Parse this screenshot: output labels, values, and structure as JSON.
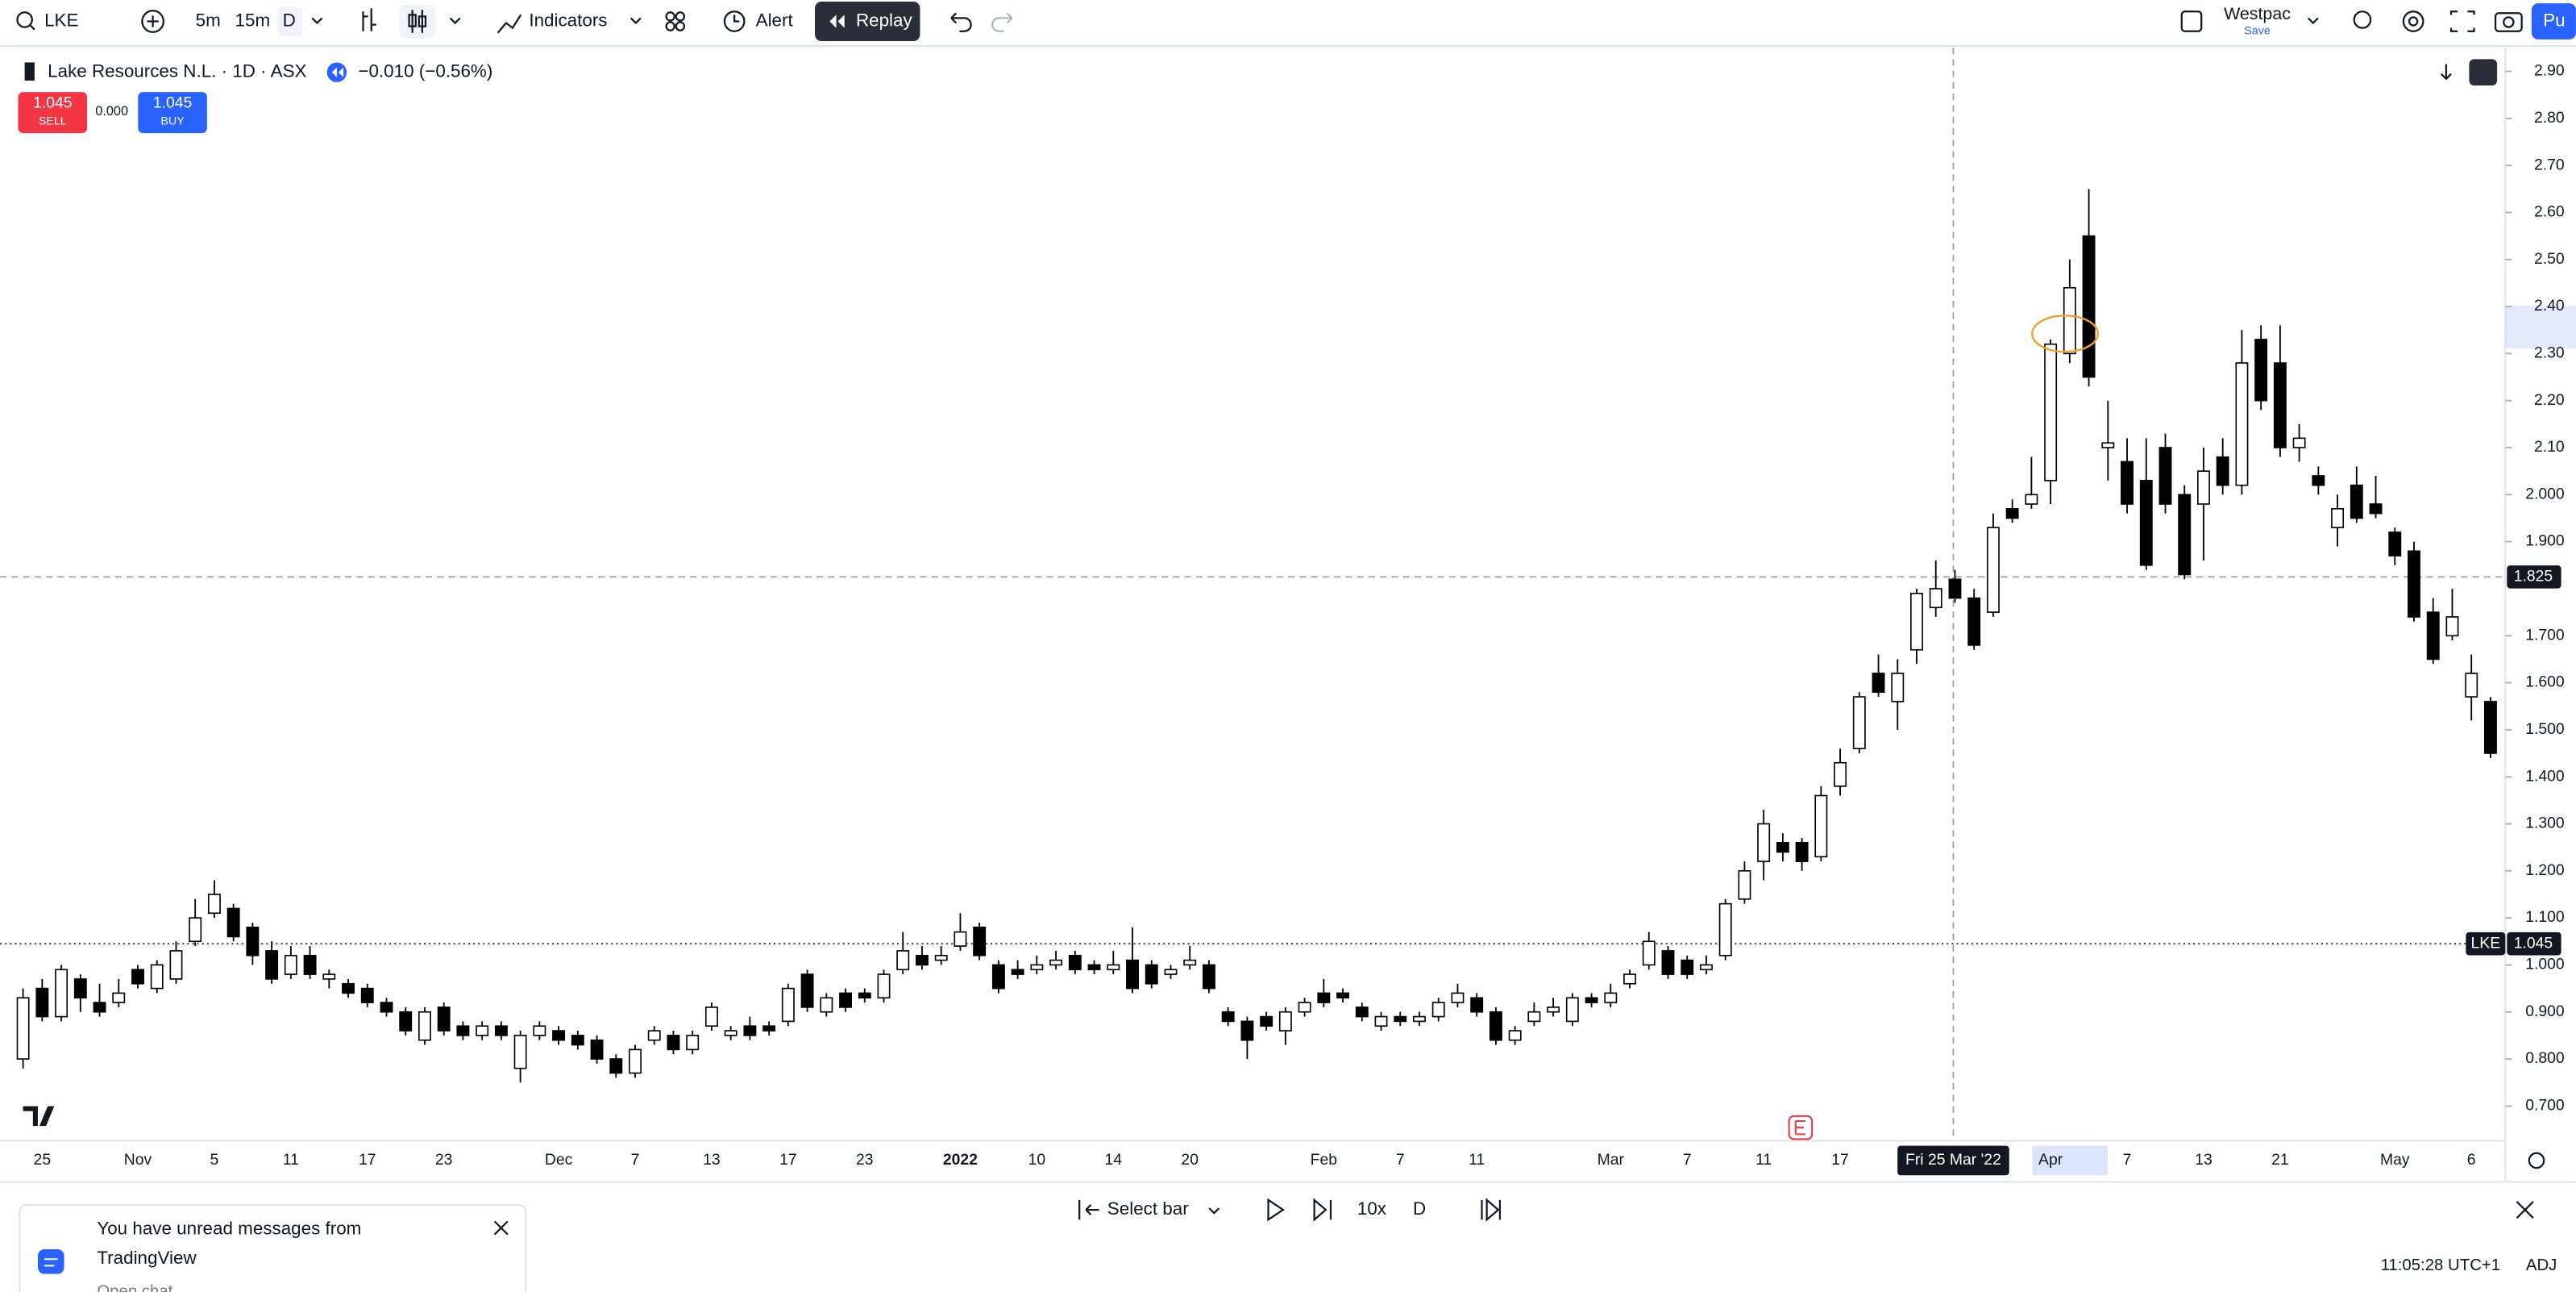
{
  "toolbar": {
    "symbol": "LKE",
    "intervals": [
      "5m",
      "15m",
      "D"
    ],
    "indicators": "Indicators",
    "alert": "Alert",
    "replay": "Replay",
    "account": "Westpac",
    "account_sub": "Save",
    "publish": "Pu"
  },
  "legend": {
    "title": "Lake Resources N.L. · 1D · ASX",
    "change": "−0.010 (−0.56%)",
    "sell_price": "1.045",
    "sell": "SELL",
    "spread": "0.000",
    "buy_price": "1.045",
    "buy": "BUY"
  },
  "chart_data": {
    "type": "candlestick",
    "categories": [
      null,
      "25",
      null,
      null,
      null,
      null,
      "Nov",
      null,
      null,
      null,
      "5",
      null,
      null,
      null,
      "11",
      null,
      null,
      null,
      "17",
      null,
      null,
      null,
      "23",
      null,
      null,
      null,
      null,
      null,
      "Dec",
      null,
      null,
      null,
      "7",
      null,
      null,
      null,
      "13",
      null,
      null,
      null,
      "17",
      null,
      null,
      null,
      "23",
      null,
      null,
      null,
      null,
      "2022",
      null,
      null,
      null,
      "10",
      null,
      null,
      null,
      "14",
      null,
      null,
      null,
      "20",
      null,
      null,
      null,
      null,
      null,
      null,
      "Feb",
      null,
      null,
      null,
      "7",
      null,
      null,
      null,
      "11",
      null,
      null,
      null,
      null,
      null,
      null,
      "Mar",
      null,
      null,
      null,
      "7",
      null,
      null,
      null,
      "11",
      null,
      null,
      null,
      "17",
      null,
      null,
      null,
      null,
      null,
      null,
      null,
      null,
      null,
      null,
      "Apr",
      null,
      null,
      null,
      "7",
      null,
      null,
      null,
      "13",
      null,
      null,
      null,
      "21",
      null,
      null,
      null,
      null,
      null,
      "May",
      null,
      null,
      null,
      "6",
      null
    ],
    "ohlc": [
      [
        0.8,
        0.95,
        0.78,
        0.93
      ],
      [
        0.95,
        0.97,
        0.88,
        0.89
      ],
      [
        0.89,
        1.0,
        0.88,
        0.99
      ],
      [
        0.97,
        0.98,
        0.9,
        0.93
      ],
      [
        0.92,
        0.96,
        0.89,
        0.9
      ],
      [
        0.92,
        0.97,
        0.91,
        0.94
      ],
      [
        0.99,
        1.0,
        0.95,
        0.96
      ],
      [
        0.95,
        1.01,
        0.94,
        1.0
      ],
      [
        0.97,
        1.05,
        0.96,
        1.03
      ],
      [
        1.05,
        1.14,
        1.04,
        1.1
      ],
      [
        1.11,
        1.18,
        1.1,
        1.15
      ],
      [
        1.12,
        1.13,
        1.05,
        1.06
      ],
      [
        1.08,
        1.09,
        1.0,
        1.02
      ],
      [
        1.03,
        1.05,
        0.96,
        0.97
      ],
      [
        0.98,
        1.04,
        0.97,
        1.02
      ],
      [
        1.02,
        1.04,
        0.97,
        0.98
      ],
      [
        0.97,
        0.99,
        0.95,
        0.98
      ],
      [
        0.96,
        0.97,
        0.93,
        0.94
      ],
      [
        0.95,
        0.96,
        0.91,
        0.92
      ],
      [
        0.92,
        0.93,
        0.89,
        0.9
      ],
      [
        0.9,
        0.91,
        0.85,
        0.86
      ],
      [
        0.84,
        0.91,
        0.83,
        0.9
      ],
      [
        0.91,
        0.92,
        0.85,
        0.86
      ],
      [
        0.87,
        0.88,
        0.84,
        0.85
      ],
      [
        0.85,
        0.88,
        0.84,
        0.87
      ],
      [
        0.87,
        0.88,
        0.84,
        0.85
      ],
      [
        0.78,
        0.86,
        0.75,
        0.85
      ],
      [
        0.85,
        0.88,
        0.84,
        0.87
      ],
      [
        0.86,
        0.87,
        0.83,
        0.84
      ],
      [
        0.85,
        0.86,
        0.82,
        0.83
      ],
      [
        0.84,
        0.85,
        0.79,
        0.8
      ],
      [
        0.8,
        0.81,
        0.76,
        0.77
      ],
      [
        0.77,
        0.83,
        0.76,
        0.82
      ],
      [
        0.84,
        0.87,
        0.83,
        0.86
      ],
      [
        0.85,
        0.86,
        0.81,
        0.82
      ],
      [
        0.82,
        0.86,
        0.81,
        0.85
      ],
      [
        0.87,
        0.92,
        0.86,
        0.91
      ],
      [
        0.85,
        0.87,
        0.84,
        0.86
      ],
      [
        0.87,
        0.89,
        0.84,
        0.85
      ],
      [
        0.87,
        0.88,
        0.85,
        0.86
      ],
      [
        0.88,
        0.96,
        0.87,
        0.95
      ],
      [
        0.98,
        0.99,
        0.9,
        0.91
      ],
      [
        0.9,
        0.94,
        0.89,
        0.93
      ],
      [
        0.94,
        0.95,
        0.9,
        0.91
      ],
      [
        0.94,
        0.95,
        0.92,
        0.93
      ],
      [
        0.93,
        0.99,
        0.92,
        0.98
      ],
      [
        0.99,
        1.07,
        0.98,
        1.03
      ],
      [
        1.02,
        1.04,
        0.99,
        1.0
      ],
      [
        1.01,
        1.04,
        1.0,
        1.02
      ],
      [
        1.04,
        1.11,
        1.03,
        1.07
      ],
      [
        1.08,
        1.09,
        1.01,
        1.02
      ],
      [
        1.0,
        1.01,
        0.94,
        0.95
      ],
      [
        0.99,
        1.01,
        0.97,
        0.98
      ],
      [
        0.99,
        1.02,
        0.98,
        1.0
      ],
      [
        1.0,
        1.03,
        0.99,
        1.01
      ],
      [
        1.02,
        1.03,
        0.98,
        0.99
      ],
      [
        1.0,
        1.01,
        0.98,
        0.99
      ],
      [
        0.99,
        1.03,
        0.98,
        1.0
      ],
      [
        1.01,
        1.08,
        0.94,
        0.95
      ],
      [
        1.0,
        1.01,
        0.95,
        0.96
      ],
      [
        0.98,
        1.0,
        0.97,
        0.99
      ],
      [
        1.0,
        1.04,
        0.99,
        1.01
      ],
      [
        1.0,
        1.01,
        0.94,
        0.95
      ],
      [
        0.9,
        0.91,
        0.87,
        0.88
      ],
      [
        0.88,
        0.89,
        0.8,
        0.84
      ],
      [
        0.89,
        0.9,
        0.86,
        0.87
      ],
      [
        0.86,
        0.91,
        0.83,
        0.9
      ],
      [
        0.9,
        0.93,
        0.89,
        0.92
      ],
      [
        0.94,
        0.97,
        0.91,
        0.92
      ],
      [
        0.94,
        0.95,
        0.92,
        0.93
      ],
      [
        0.91,
        0.92,
        0.88,
        0.89
      ],
      [
        0.87,
        0.9,
        0.86,
        0.89
      ],
      [
        0.89,
        0.9,
        0.87,
        0.88
      ],
      [
        0.88,
        0.9,
        0.87,
        0.89
      ],
      [
        0.89,
        0.93,
        0.88,
        0.92
      ],
      [
        0.92,
        0.96,
        0.91,
        0.94
      ],
      [
        0.93,
        0.94,
        0.89,
        0.9
      ],
      [
        0.9,
        0.91,
        0.83,
        0.84
      ],
      [
        0.84,
        0.87,
        0.83,
        0.86
      ],
      [
        0.88,
        0.92,
        0.87,
        0.9
      ],
      [
        0.9,
        0.93,
        0.89,
        0.91
      ],
      [
        0.88,
        0.94,
        0.87,
        0.93
      ],
      [
        0.93,
        0.94,
        0.91,
        0.92
      ],
      [
        0.92,
        0.96,
        0.91,
        0.94
      ],
      [
        0.96,
        0.99,
        0.95,
        0.98
      ],
      [
        1.0,
        1.07,
        0.99,
        1.05
      ],
      [
        1.03,
        1.04,
        0.97,
        0.98
      ],
      [
        1.01,
        1.02,
        0.97,
        0.98
      ],
      [
        0.99,
        1.02,
        0.98,
        1.0
      ],
      [
        1.02,
        1.14,
        1.01,
        1.13
      ],
      [
        1.14,
        1.22,
        1.13,
        1.2
      ],
      [
        1.22,
        1.33,
        1.18,
        1.3
      ],
      [
        1.26,
        1.28,
        1.22,
        1.24
      ],
      [
        1.26,
        1.27,
        1.2,
        1.22
      ],
      [
        1.23,
        1.38,
        1.22,
        1.36
      ],
      [
        1.38,
        1.46,
        1.36,
        1.43
      ],
      [
        1.46,
        1.58,
        1.45,
        1.57
      ],
      [
        1.62,
        1.66,
        1.57,
        1.58
      ],
      [
        1.56,
        1.65,
        1.5,
        1.62
      ],
      [
        1.67,
        1.8,
        1.64,
        1.79
      ],
      [
        1.76,
        1.86,
        1.74,
        1.8
      ],
      [
        1.82,
        1.84,
        1.77,
        1.78
      ],
      [
        1.78,
        1.8,
        1.67,
        1.68
      ],
      [
        1.75,
        1.96,
        1.74,
        1.93
      ],
      [
        1.97,
        1.99,
        1.94,
        1.95
      ],
      [
        1.98,
        2.08,
        1.97,
        2.0
      ],
      [
        2.03,
        2.33,
        1.98,
        2.32
      ],
      [
        2.3,
        2.5,
        2.28,
        2.44
      ],
      [
        2.55,
        2.65,
        2.23,
        2.25
      ],
      [
        2.1,
        2.2,
        2.03,
        2.11
      ],
      [
        2.07,
        2.12,
        1.96,
        1.98
      ],
      [
        2.03,
        2.12,
        1.84,
        1.85
      ],
      [
        2.1,
        2.13,
        1.96,
        1.98
      ],
      [
        2.0,
        2.02,
        1.82,
        1.83
      ],
      [
        1.98,
        2.1,
        1.86,
        2.05
      ],
      [
        2.08,
        2.12,
        2.0,
        2.02
      ],
      [
        2.02,
        2.35,
        2.0,
        2.28
      ],
      [
        2.33,
        2.36,
        2.18,
        2.2
      ],
      [
        2.28,
        2.36,
        2.08,
        2.1
      ],
      [
        2.1,
        2.15,
        2.07,
        2.12
      ],
      [
        2.04,
        2.06,
        2.0,
        2.02
      ],
      [
        1.93,
        2.0,
        1.89,
        1.97
      ],
      [
        2.02,
        2.06,
        1.94,
        1.95
      ],
      [
        1.98,
        2.04,
        1.95,
        1.96
      ],
      [
        1.92,
        1.93,
        1.85,
        1.87
      ],
      [
        1.88,
        1.9,
        1.73,
        1.74
      ],
      [
        1.75,
        1.78,
        1.64,
        1.65
      ],
      [
        1.7,
        1.8,
        1.69,
        1.74
      ],
      [
        1.57,
        1.66,
        1.52,
        1.62
      ],
      [
        1.56,
        1.57,
        1.44,
        1.45
      ]
    ],
    "up_color": "#ffffff",
    "down_color": "#000000",
    "ylim": [
      0.64,
      2.94
    ],
    "yticks": [
      {
        "value": 0.7,
        "label": "0.700"
      },
      {
        "value": 0.8,
        "label": "0.800"
      },
      {
        "value": 0.9,
        "label": "0.900"
      },
      {
        "value": 1.0,
        "label": "1.000"
      },
      {
        "value": 1.1,
        "label": "1.100"
      },
      {
        "value": 1.2,
        "label": "1.200"
      },
      {
        "value": 1.3,
        "label": "1.300"
      },
      {
        "value": 1.4,
        "label": "1.400"
      },
      {
        "value": 1.5,
        "label": "1.500"
      },
      {
        "value": 1.6,
        "label": "1.600"
      },
      {
        "value": 1.7,
        "label": "1.700"
      },
      {
        "value": 1.9,
        "label": "1.900"
      },
      {
        "value": 2.0,
        "label": "2.000"
      },
      {
        "value": 2.1,
        "label": "2.10"
      },
      {
        "value": 2.2,
        "label": "2.20"
      },
      {
        "value": 2.3,
        "label": "2.30"
      },
      {
        "value": 2.4,
        "label": "2.40"
      },
      {
        "value": 2.5,
        "label": "2.50"
      },
      {
        "value": 2.6,
        "label": "2.60"
      },
      {
        "value": 2.7,
        "label": "2.70"
      },
      {
        "value": 2.8,
        "label": "2.80"
      },
      {
        "value": 2.9,
        "label": "2.90"
      }
    ],
    "crosshair": {
      "price": 1.825,
      "date": "Fri 25 Mar '22"
    },
    "last_price": 1.045
  },
  "replay_bar": {
    "select_bar": "Select bar",
    "speed": "10x",
    "interval": "D"
  },
  "notification": {
    "title": "You have unread messages from",
    "source": "TradingView",
    "more": "Open chat"
  },
  "status": {
    "time": "11:05:28 UTC+1",
    "adj": "ADJ"
  }
}
